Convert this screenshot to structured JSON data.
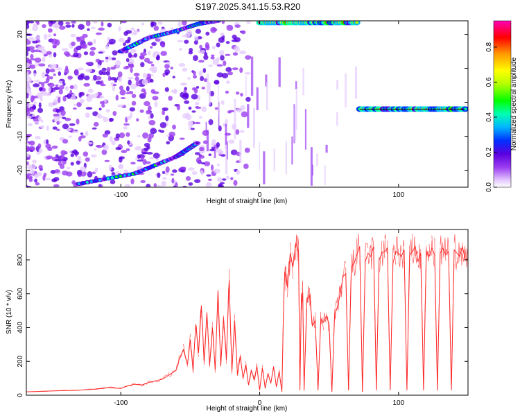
{
  "title": "S197.2025.341.15.53.R20",
  "colors": {
    "snr_line": "#ff2a2a",
    "colormap": [
      "#ffffff",
      "#e6ccff",
      "#9a3cf0",
      "#5a00e0",
      "#0030ff",
      "#00b4ff",
      "#00ffb4",
      "#00ff00",
      "#b4ff00",
      "#ffff00",
      "#ff9a00",
      "#ff0000",
      "#ff00b4"
    ]
  },
  "chart_data": [
    {
      "type": "heatmap",
      "xlabel": "Height of straight line (km)",
      "ylabel": "Frequency (Hz)",
      "xlim": [
        -168,
        150
      ],
      "ylim": [
        -25,
        24
      ],
      "xticks": [
        -100,
        0,
        100
      ],
      "yticks": [
        -20,
        -10,
        0,
        10,
        20
      ],
      "colorbar": {
        "label": "Normalized spectral amplitude",
        "range": [
          0.0,
          0.95
        ],
        "ticks": [
          "0.0",
          "0.2",
          "0.4",
          "0.6",
          "0.8"
        ]
      },
      "features": [
        {
          "name": "upward-trace",
          "x": [
            -100,
            -80,
            -60,
            -45,
            -30
          ],
          "y": [
            15,
            19,
            21,
            23,
            24
          ]
        },
        {
          "name": "top-band",
          "x": [
            0,
            70
          ],
          "y": [
            23.5,
            23.5
          ]
        },
        {
          "name": "carrier-line",
          "x": [
            72,
            148
          ],
          "y": [
            -2,
            -2
          ]
        },
        {
          "name": "downward-trace",
          "x": [
            -130,
            -90,
            -60,
            -45
          ],
          "y": [
            -24,
            -21,
            -16,
            -12
          ]
        }
      ]
    },
    {
      "type": "line",
      "xlabel": "Height of straight line (km)",
      "ylabel": "SNR (10 * v/v)",
      "xlim": [
        -168,
        150
      ],
      "ylim": [
        0,
        980
      ],
      "xticks": [
        -100,
        0,
        100
      ],
      "yticks": [
        0,
        200,
        400,
        600,
        800
      ],
      "series": [
        {
          "x": [
            -168,
            -150,
            -130,
            -120,
            -110,
            -100,
            -95,
            -90,
            -85,
            -80,
            -75,
            -70,
            -65,
            -60,
            -58,
            -55,
            -52,
            -50,
            -48,
            -46,
            -44,
            -42,
            -40,
            -38,
            -36,
            -34,
            -32,
            -30,
            -28,
            -26,
            -24,
            -22,
            -20,
            -18,
            -16,
            -14,
            -12,
            -10,
            -8,
            -6,
            -4,
            -2,
            0,
            2,
            4,
            6,
            8,
            10,
            12,
            14,
            16,
            17,
            18,
            19,
            20,
            22,
            24,
            26,
            28,
            29,
            30,
            31,
            32,
            34,
            36,
            38,
            40,
            42,
            44,
            46,
            48,
            50,
            52,
            54,
            56,
            58,
            60,
            62,
            64,
            66,
            68,
            70,
            72,
            74,
            76,
            78,
            80,
            82,
            84,
            86,
            88,
            90,
            92,
            94,
            96,
            98,
            100,
            102,
            104,
            106,
            108,
            110,
            112,
            114,
            116,
            118,
            120,
            122,
            124,
            126,
            128,
            130,
            132,
            134,
            136,
            138,
            140,
            142,
            144,
            146,
            148,
            150
          ],
          "y": [
            20,
            25,
            30,
            35,
            45,
            40,
            55,
            65,
            60,
            75,
            85,
            95,
            120,
            150,
            210,
            270,
            180,
            330,
            150,
            420,
            250,
            530,
            200,
            490,
            180,
            400,
            150,
            620,
            170,
            460,
            210,
            680,
            140,
            440,
            120,
            230,
            100,
            180,
            60,
            150,
            90,
            170,
            30,
            160,
            40,
            130,
            70,
            170,
            50,
            140,
            20,
            450,
            730,
            680,
            640,
            840,
            760,
            900,
            850,
            30,
            560,
            610,
            30,
            570,
            590,
            410,
            440,
            30,
            450,
            430,
            470,
            420,
            20,
            480,
            520,
            600,
            700,
            720,
            30,
            760,
            780,
            830,
            880,
            20,
            790,
            840,
            820,
            880,
            30,
            800,
            840,
            850,
            870,
            30,
            780,
            850,
            840,
            820,
            860,
            30,
            830,
            850,
            880,
            790,
            840,
            30,
            850,
            820,
            870,
            830,
            30,
            840,
            870,
            830,
            850,
            30,
            860,
            840,
            820,
            880,
            800,
            810
          ]
        }
      ]
    }
  ]
}
